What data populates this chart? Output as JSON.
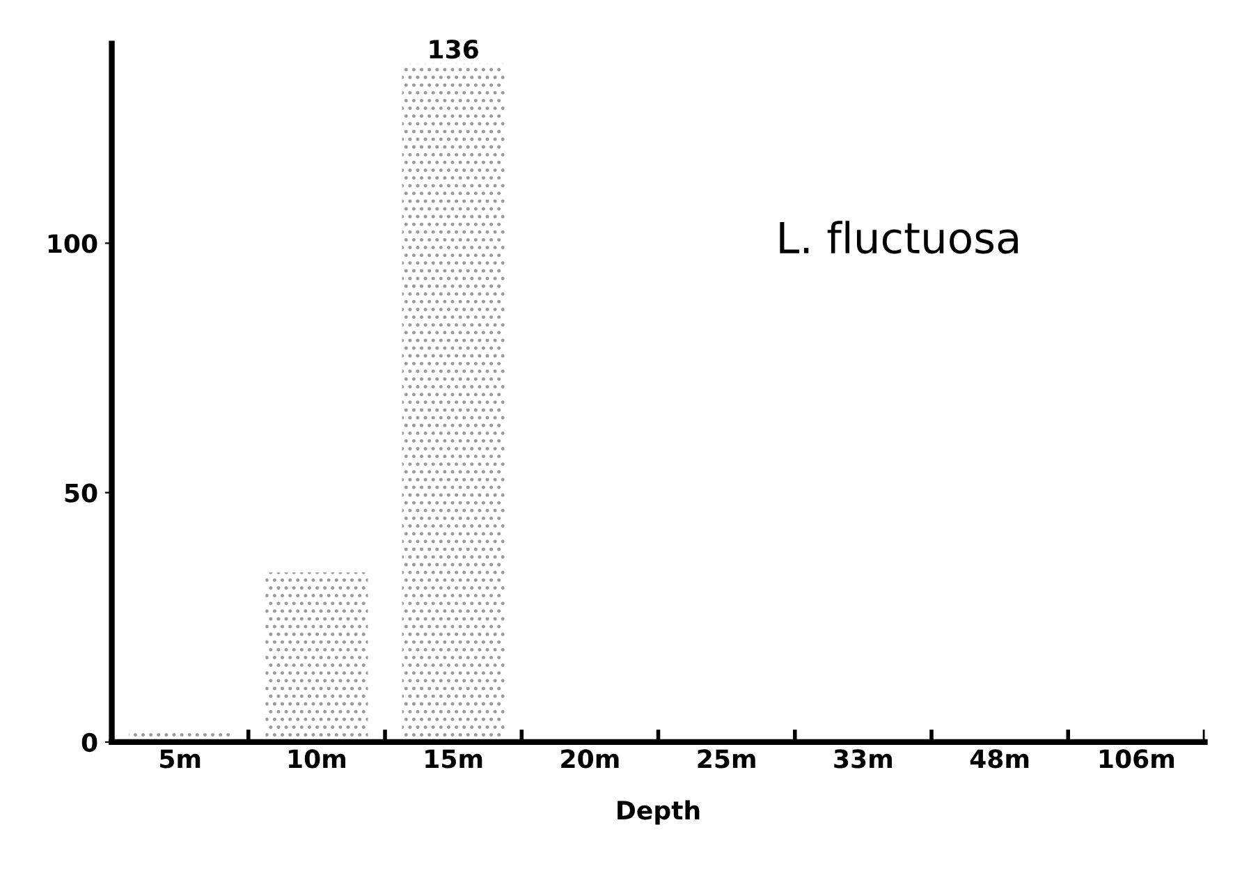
{
  "chart_data": {
    "type": "bar",
    "xlabel": "Depth",
    "categories": [
      "5m",
      "10m",
      "15m",
      "20m",
      "25m",
      "33m",
      "48m",
      "106m"
    ],
    "values": [
      2,
      34,
      136,
      0,
      0,
      0,
      0,
      0
    ],
    "value_labels": [
      null,
      null,
      "136",
      null,
      null,
      null,
      null,
      null
    ],
    "color": "#9a9a9a",
    "ylim": [
      0,
      140
    ],
    "yticks": [
      0,
      50,
      100
    ],
    "grid": false,
    "legend": false,
    "annotations": [
      "L. fluctuosa"
    ]
  }
}
